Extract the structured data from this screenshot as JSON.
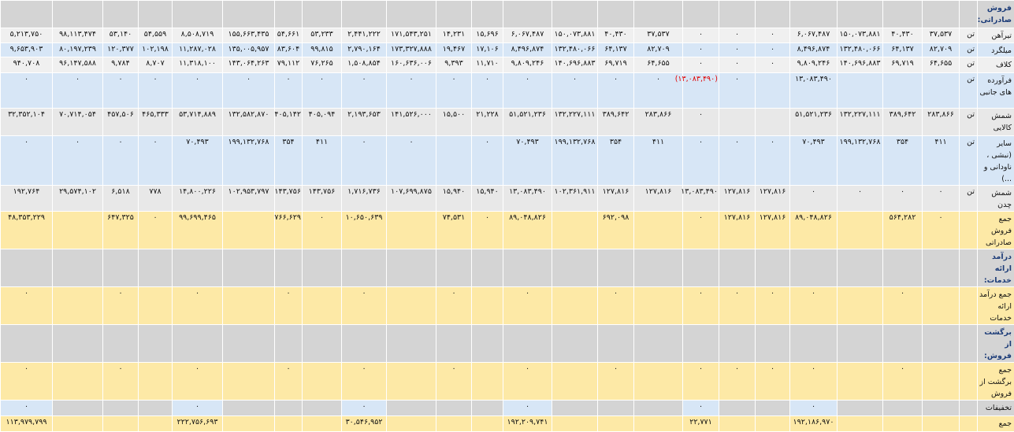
{
  "table": {
    "rows": [
      {
        "label": "فروش صادراتی:",
        "header": true,
        "background": "#d4d4d4"
      },
      {
        "label": "تیرآهن",
        "unit": "تن",
        "background": "#f0f0f0",
        "cells": [
          "۳۷,۵۳۷",
          "۴۰,۴۳۰",
          "۱۵۰,۰۷۳,۸۸۱",
          "۶,۰۶۷,۴۸۷",
          "۰",
          "۰",
          "۰",
          "۳۷,۵۳۷",
          "۴۰,۴۳۰",
          "۱۵۰,۰۷۳,۸۸۱",
          "۶,۰۶۷,۴۸۷",
          "۱۵,۶۹۶",
          "۱۴,۲۳۱",
          "۱۷۱,۵۴۳,۲۵۱",
          "۲,۴۴۱,۲۲۲",
          "۵۳,۲۳۳",
          "۵۴,۶۶۱",
          "۱۵۵,۶۶۳,۴۳۵",
          "۸,۵۰۸,۷۱۹",
          "۵۴,۵۵۹",
          "۵۳,۱۴۰",
          "۹۸,۱۱۳,۴۷۴",
          "۵,۲۱۳,۷۵۰"
        ]
      },
      {
        "label": "میلگرد",
        "unit": "تن",
        "background": "#d7e6f6",
        "cells": [
          "۸۲,۷۰۹",
          "۶۴,۱۳۷",
          "۱۳۲,۴۸۰,۰۶۶",
          "۸,۴۹۶,۸۷۴",
          "۰",
          "۰",
          "۰",
          "۸۲,۷۰۹",
          "۶۴,۱۳۷",
          "۱۳۲,۴۸۰,۰۶۶",
          "۸,۴۹۶,۸۷۴",
          "۱۷,۱۰۶",
          "۱۹,۴۶۷",
          "۱۷۳,۳۲۷,۸۸۸",
          "۲,۷۹۰,۱۶۴",
          "۹۹,۸۱۵",
          "۸۳,۶۰۴",
          "۱۳۵,۰۰۵,۹۵۷",
          "۱۱,۲۸۷,۰۲۸",
          "۱۰۲,۱۹۸",
          "۱۲۰,۳۷۷",
          "۸۰,۱۹۷,۲۳۹",
          "۹,۶۵۳,۹۰۳"
        ]
      },
      {
        "label": "کلاف",
        "unit": "تن",
        "background": "#f0f0f0",
        "cells": [
          "۶۴,۶۵۵",
          "۶۹,۷۱۹",
          "۱۴۰,۶۹۶,۸۸۳",
          "۹,۸۰۹,۲۴۶",
          "۰",
          "۰",
          "۰",
          "۶۴,۶۵۵",
          "۶۹,۷۱۹",
          "۱۴۰,۶۹۶,۸۸۳",
          "۹,۸۰۹,۲۴۶",
          "۱۱,۷۱۰",
          "۹,۳۹۳",
          "۱۶۰,۶۳۶,۰۰۶",
          "۱,۵۰۸,۸۵۴",
          "۷۶,۲۶۵",
          "۷۹,۱۱۲",
          "۱۴۳,۰۶۴,۲۶۳",
          "۱۱,۳۱۸,۱۰۰",
          "۸,۷۰۷",
          "۹,۷۸۴",
          "۹۶,۱۴۷,۵۸۸",
          "۹۴۰,۷۰۸"
        ]
      },
      {
        "label": "فرآورده های جانبی",
        "unit": "تن",
        "background": "#d7e6f6",
        "cells": [
          null,
          null,
          null,
          "۱۳,۰۸۳,۴۹۰",
          null,
          "۰",
          {
            "text": "(۱۳,۰۸۳,۴۹۰)",
            "color": "#e00000"
          },
          "۰",
          "۰",
          "۰",
          "۰",
          "۰",
          "۰",
          "۰",
          "۰",
          "۰",
          "۰",
          "۰",
          "۰",
          "۰",
          "۰",
          "۰",
          "۰"
        ]
      },
      {
        "label": "شمش کالایی",
        "unit": "تن",
        "background": "#e8e8e8",
        "cells": [
          "۲۸۳,۸۶۶",
          "۳۸۹,۶۴۲",
          "۱۳۲,۲۲۷,۱۱۱",
          "۵۱,۵۲۱,۲۳۶",
          null,
          null,
          "۰",
          "۲۸۳,۸۶۶",
          "۳۸۹,۶۴۲",
          "۱۳۲,۲۲۷,۱۱۱",
          "۵۱,۵۲۱,۲۳۶",
          "۲۱,۲۲۸",
          "۱۵,۵۰۰",
          "۱۴۱,۵۲۶,۰۰۰",
          "۲,۱۹۳,۶۵۳",
          "۴۰۵,۰۹۴",
          "۴۰۵,۱۴۲",
          "۱۳۲,۵۸۲,۸۷۰",
          "۵۳,۷۱۴,۸۸۹",
          "۴۶۵,۳۳۳",
          "۴۵۷,۵۰۶",
          "۷۰,۷۱۴,۰۵۴",
          "۳۲,۳۵۲,۱۰۴"
        ]
      },
      {
        "label": "سایر (نبشی ، ناودانی و ...)",
        "unit": "تن",
        "background": "#d7e6f6",
        "cells": [
          "۴۱۱",
          "۳۵۴",
          "۱۹۹,۱۳۲,۷۶۸",
          "۷۰,۴۹۳",
          "۰",
          "۰",
          "۰",
          "۴۱۱",
          "۳۵۴",
          "۱۹۹,۱۳۲,۷۶۸",
          "۷۰,۴۹۳",
          "۰",
          null,
          "۰",
          "۰",
          "۴۱۱",
          "۳۵۴",
          "۱۹۹,۱۳۲,۷۶۸",
          "۷۰,۴۹۳",
          "۰",
          "۰",
          "۰",
          "۰"
        ]
      },
      {
        "label": "شمش چدن",
        "unit": "تن",
        "background": "#e8e8e8",
        "cells": [
          "۰",
          "۰",
          "۰",
          "۰",
          "۱۲۷,۸۱۶",
          "۱۲۷,۸۱۶",
          "۱۳,۰۸۳,۴۹۰",
          "۱۲۷,۸۱۶",
          "۱۲۷,۸۱۶",
          "۱۰۲,۳۶۱,۹۱۱",
          "۱۳,۰۸۳,۴۹۰",
          "۱۵,۹۴۰",
          "۱۵,۹۴۰",
          "۱۰۷,۶۹۹,۸۷۵",
          "۱,۷۱۶,۷۳۶",
          "۱۴۳,۷۵۶",
          "۱۴۳,۷۵۶",
          "۱۰۲,۹۵۳,۷۹۷",
          "۱۴,۸۰۰,۲۲۶",
          "۷۷۸",
          "۶,۵۱۸",
          "۲۹,۵۷۴,۱۰۲",
          "۱۹۲,۷۶۴"
        ]
      },
      {
        "label": "جمع فروش صادراتی",
        "background": "#fde9a6",
        "cells": [
          "۰",
          "۵۶۴,۲۸۲",
          null,
          "۸۹,۰۴۸,۸۲۶",
          "۱۲۷,۸۱۶",
          "۱۲۷,۸۱۶",
          "۰",
          null,
          "۶۹۲,۰۹۸",
          null,
          "۸۹,۰۴۸,۸۲۶",
          "۰",
          "۷۴,۵۳۱",
          null,
          "۱۰,۶۵۰,۶۳۹",
          "۰",
          "۷۶۶,۶۲۹",
          null,
          "۹۹,۶۹۹,۴۶۵",
          "۰",
          "۶۴۷,۳۲۵",
          null,
          "۴۸,۳۵۳,۲۲۹"
        ]
      },
      {
        "label": "درآمد ارائه خدمات:",
        "header": true,
        "background": "#d4d4d4"
      },
      {
        "label": "جمع درآمد ارائه خدمات",
        "background": "#fde9a6",
        "cells": [
          null,
          "۰",
          null,
          "۰",
          "۰",
          "۰",
          "۰",
          null,
          "۰",
          null,
          "۰",
          null,
          "۰",
          null,
          "۰",
          null,
          "۰",
          null,
          "۰",
          null,
          "۰",
          null,
          "۰"
        ]
      },
      {
        "label": "برگشت از فروش:",
        "header": true,
        "background": "#d4d4d4"
      },
      {
        "label": "جمع برگشت از فروش",
        "background": "#fde9a6",
        "cells": [
          null,
          "۰",
          null,
          "۰",
          "۰",
          "۰",
          "۰",
          null,
          "۰",
          null,
          "۰",
          null,
          "۰",
          null,
          "۰",
          null,
          "۰",
          null,
          "۰",
          null,
          "۰",
          null,
          "۰"
        ]
      },
      {
        "label": "تخفیفات",
        "background": "#d4d4d4",
        "cells": [
          null,
          null,
          null,
          {
            "text": "۰",
            "background": "#d7e6f6"
          },
          null,
          null,
          {
            "text": "۰",
            "background": "#d7e6f6"
          },
          null,
          null,
          null,
          {
            "text": "۰",
            "background": "#d7e6f6"
          },
          null,
          null,
          null,
          {
            "text": "۰",
            "background": "#d7e6f6"
          },
          null,
          null,
          null,
          {
            "text": "۰",
            "background": "#d7e6f6"
          },
          null,
          null,
          null,
          {
            "text": "۰",
            "background": "#d7e6f6"
          }
        ]
      },
      {
        "label": "جمع",
        "background": "#fde9a6",
        "cells": [
          null,
          null,
          null,
          "۱۹۲,۱۸۶,۹۷۰",
          null,
          null,
          "۲۲,۷۷۱",
          null,
          null,
          null,
          "۱۹۲,۲۰۹,۷۴۱",
          null,
          null,
          null,
          "۳۰,۵۴۶,۹۵۲",
          null,
          null,
          null,
          "۲۲۲,۷۵۶,۶۹۳",
          null,
          null,
          null,
          "۱۱۳,۹۷۹,۷۹۹"
        ]
      }
    ]
  }
}
